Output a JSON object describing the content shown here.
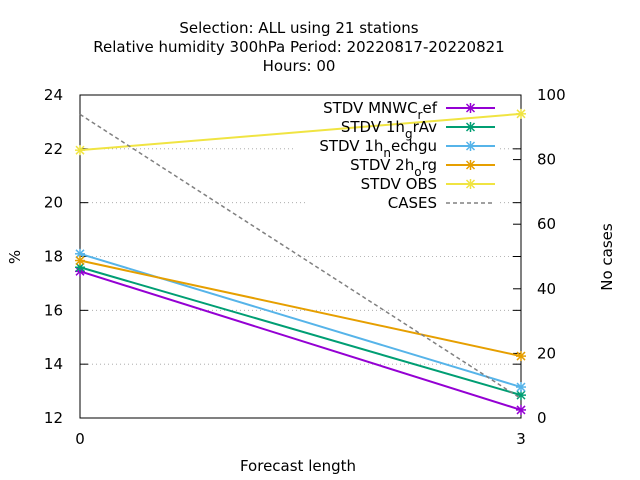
{
  "chart_data": {
    "type": "line",
    "title_lines": [
      "Selection: ALL using    21 stations",
      "Relative humidity 300hPa   Period: 20220817-20220821",
      "Hours:  00"
    ],
    "xlabel": "Forecast length",
    "ylabel": "%",
    "y2label": "No cases",
    "x": [
      0,
      3
    ],
    "xlim": [
      0,
      3
    ],
    "ylim": [
      12,
      24
    ],
    "y2lim": [
      0,
      100
    ],
    "xticks": [
      0,
      3
    ],
    "yticks": [
      12,
      14,
      16,
      18,
      20,
      22,
      24
    ],
    "y2ticks": [
      0,
      20,
      40,
      60,
      80,
      100
    ],
    "grid": true,
    "legend_position": "top-right",
    "series": [
      {
        "name": "STDV MNWC_ref",
        "legend_parts": [
          "STDV MNWC",
          "r",
          "ef"
        ],
        "color": "#9400d3",
        "marker": "x-star",
        "axis": "y",
        "values": [
          17.45,
          12.3
        ]
      },
      {
        "name": "STDV 1h_grAv",
        "legend_parts": [
          "STDV 1h",
          "g",
          "rAv"
        ],
        "color": "#009e73",
        "marker": "x-star",
        "axis": "y",
        "values": [
          17.6,
          12.85
        ]
      },
      {
        "name": "STDV 1h_nechgu",
        "legend_parts": [
          "STDV 1h",
          "n",
          "echgu"
        ],
        "color": "#56b4e9",
        "marker": "x-star",
        "axis": "y",
        "values": [
          18.1,
          13.15
        ]
      },
      {
        "name": "STDV 2h_org",
        "legend_parts": [
          "STDV 2h",
          "o",
          "rg"
        ],
        "color": "#e69f00",
        "marker": "x-star",
        "axis": "y",
        "values": [
          17.85,
          14.3
        ]
      },
      {
        "name": "STDV OBS",
        "legend_parts": [
          "STDV OBS",
          "",
          ""
        ],
        "color": "#f0e442",
        "marker": "x-star",
        "axis": "y",
        "values": [
          21.95,
          23.3
        ]
      },
      {
        "name": "CASES",
        "legend_parts": [
          "CASES",
          "",
          ""
        ],
        "color": "#808080",
        "marker": "none",
        "dashed": true,
        "axis": "y2",
        "values": [
          94,
          6
        ]
      }
    ]
  }
}
